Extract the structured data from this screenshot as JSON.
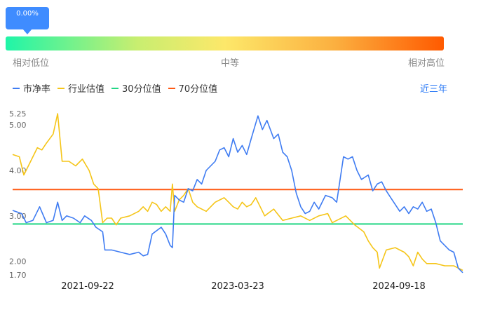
{
  "indicator": {
    "value_label": "0.00%",
    "scale_low": "相对低位",
    "scale_mid": "中等",
    "scale_high": "相对高位"
  },
  "period_selector": {
    "label": "近三年"
  },
  "colors": {
    "pe": "#3f7cf2",
    "industry": "#f5c518",
    "p30": "#22d685",
    "p70": "#ff5a14"
  },
  "chart_data": {
    "type": "line",
    "xlabel": "",
    "ylabel": "",
    "x_ticks": [
      "2021-09-22",
      "2023-03-23",
      "2024-09-18"
    ],
    "y_ticks": [
      1.7,
      2.0,
      3.0,
      4.0,
      5.0,
      5.25
    ],
    "y_tick_labels": [
      "1.70",
      "2.00",
      "3.00",
      "4.00",
      "5.00",
      "5.25"
    ],
    "ylim": [
      1.7,
      5.25
    ],
    "legend_position": "top-left",
    "series": [
      {
        "name": "市净率",
        "color": "#3f7cf2",
        "points": [
          [
            0,
            3.12
          ],
          [
            0.02,
            3.05
          ],
          [
            0.03,
            2.85
          ],
          [
            0.045,
            2.9
          ],
          [
            0.06,
            3.2
          ],
          [
            0.075,
            2.85
          ],
          [
            0.09,
            2.9
          ],
          [
            0.1,
            3.3
          ],
          [
            0.11,
            2.9
          ],
          [
            0.12,
            3.0
          ],
          [
            0.135,
            2.95
          ],
          [
            0.15,
            2.85
          ],
          [
            0.16,
            3.0
          ],
          [
            0.175,
            2.9
          ],
          [
            0.185,
            2.75
          ],
          [
            0.2,
            2.65
          ],
          [
            0.205,
            2.25
          ],
          [
            0.22,
            2.25
          ],
          [
            0.24,
            2.2
          ],
          [
            0.26,
            2.15
          ],
          [
            0.28,
            2.2
          ],
          [
            0.29,
            2.12
          ],
          [
            0.3,
            2.15
          ],
          [
            0.31,
            2.6
          ],
          [
            0.33,
            2.75
          ],
          [
            0.34,
            2.6
          ],
          [
            0.35,
            2.35
          ],
          [
            0.355,
            2.3
          ],
          [
            0.36,
            3.45
          ],
          [
            0.37,
            3.35
          ],
          [
            0.38,
            3.3
          ],
          [
            0.39,
            3.6
          ],
          [
            0.4,
            3.55
          ],
          [
            0.41,
            3.8
          ],
          [
            0.42,
            3.7
          ],
          [
            0.43,
            4.0
          ],
          [
            0.44,
            4.1
          ],
          [
            0.45,
            4.2
          ],
          [
            0.46,
            4.45
          ],
          [
            0.47,
            4.5
          ],
          [
            0.48,
            4.3
          ],
          [
            0.49,
            4.7
          ],
          [
            0.5,
            4.4
          ],
          [
            0.51,
            4.55
          ],
          [
            0.52,
            4.35
          ],
          [
            0.53,
            4.7
          ],
          [
            0.545,
            5.2
          ],
          [
            0.555,
            4.9
          ],
          [
            0.565,
            5.1
          ],
          [
            0.58,
            4.7
          ],
          [
            0.59,
            4.8
          ],
          [
            0.6,
            4.4
          ],
          [
            0.61,
            4.3
          ],
          [
            0.62,
            4.0
          ],
          [
            0.63,
            3.5
          ],
          [
            0.64,
            3.2
          ],
          [
            0.65,
            3.05
          ],
          [
            0.66,
            3.1
          ],
          [
            0.67,
            3.3
          ],
          [
            0.68,
            3.15
          ],
          [
            0.695,
            3.45
          ],
          [
            0.71,
            3.4
          ],
          [
            0.72,
            3.3
          ],
          [
            0.735,
            4.3
          ],
          [
            0.745,
            4.25
          ],
          [
            0.755,
            4.3
          ],
          [
            0.765,
            4.0
          ],
          [
            0.775,
            3.8
          ],
          [
            0.79,
            3.9
          ],
          [
            0.8,
            3.55
          ],
          [
            0.81,
            3.7
          ],
          [
            0.82,
            3.75
          ],
          [
            0.83,
            3.55
          ],
          [
            0.84,
            3.4
          ],
          [
            0.85,
            3.25
          ],
          [
            0.86,
            3.1
          ],
          [
            0.87,
            3.2
          ],
          [
            0.88,
            3.05
          ],
          [
            0.89,
            3.2
          ],
          [
            0.9,
            3.15
          ],
          [
            0.91,
            3.3
          ],
          [
            0.92,
            3.1
          ],
          [
            0.93,
            3.15
          ],
          [
            0.94,
            2.85
          ],
          [
            0.95,
            2.45
          ],
          [
            0.96,
            2.35
          ],
          [
            0.97,
            2.25
          ],
          [
            0.98,
            2.2
          ],
          [
            0.99,
            1.85
          ],
          [
            1.0,
            1.75
          ]
        ]
      },
      {
        "name": "行业估值",
        "color": "#f5c518",
        "points": [
          [
            0,
            4.35
          ],
          [
            0.015,
            4.3
          ],
          [
            0.025,
            3.9
          ],
          [
            0.04,
            4.2
          ],
          [
            0.055,
            4.5
          ],
          [
            0.065,
            4.45
          ],
          [
            0.075,
            4.6
          ],
          [
            0.09,
            4.8
          ],
          [
            0.1,
            5.25
          ],
          [
            0.11,
            4.2
          ],
          [
            0.125,
            4.2
          ],
          [
            0.14,
            4.1
          ],
          [
            0.155,
            4.25
          ],
          [
            0.17,
            4.0
          ],
          [
            0.18,
            3.7
          ],
          [
            0.19,
            3.6
          ],
          [
            0.2,
            2.85
          ],
          [
            0.21,
            2.95
          ],
          [
            0.22,
            2.95
          ],
          [
            0.23,
            2.8
          ],
          [
            0.24,
            2.95
          ],
          [
            0.26,
            3.0
          ],
          [
            0.28,
            3.1
          ],
          [
            0.29,
            3.2
          ],
          [
            0.3,
            3.1
          ],
          [
            0.31,
            3.3
          ],
          [
            0.32,
            3.25
          ],
          [
            0.33,
            3.1
          ],
          [
            0.34,
            3.2
          ],
          [
            0.35,
            3.1
          ],
          [
            0.355,
            3.7
          ],
          [
            0.36,
            3.1
          ],
          [
            0.37,
            3.35
          ],
          [
            0.38,
            3.45
          ],
          [
            0.39,
            3.6
          ],
          [
            0.4,
            3.3
          ],
          [
            0.41,
            3.2
          ],
          [
            0.43,
            3.1
          ],
          [
            0.45,
            3.3
          ],
          [
            0.47,
            3.4
          ],
          [
            0.48,
            3.3
          ],
          [
            0.49,
            3.2
          ],
          [
            0.5,
            3.15
          ],
          [
            0.51,
            3.3
          ],
          [
            0.52,
            3.2
          ],
          [
            0.53,
            3.25
          ],
          [
            0.54,
            3.4
          ],
          [
            0.55,
            3.2
          ],
          [
            0.56,
            3.0
          ],
          [
            0.58,
            3.15
          ],
          [
            0.6,
            2.9
          ],
          [
            0.62,
            2.95
          ],
          [
            0.64,
            3.0
          ],
          [
            0.66,
            2.9
          ],
          [
            0.68,
            3.0
          ],
          [
            0.7,
            3.05
          ],
          [
            0.71,
            2.85
          ],
          [
            0.72,
            2.9
          ],
          [
            0.74,
            3.0
          ],
          [
            0.76,
            2.8
          ],
          [
            0.78,
            2.65
          ],
          [
            0.79,
            2.45
          ],
          [
            0.8,
            2.3
          ],
          [
            0.81,
            2.2
          ],
          [
            0.815,
            1.85
          ],
          [
            0.83,
            2.25
          ],
          [
            0.85,
            2.3
          ],
          [
            0.87,
            2.2
          ],
          [
            0.88,
            2.1
          ],
          [
            0.89,
            1.9
          ],
          [
            0.9,
            2.2
          ],
          [
            0.91,
            2.05
          ],
          [
            0.92,
            1.95
          ],
          [
            0.94,
            1.95
          ],
          [
            0.96,
            1.9
          ],
          [
            0.98,
            1.9
          ],
          [
            1.0,
            1.8
          ]
        ]
      },
      {
        "name": "30分位值",
        "color": "#22d685",
        "points": [
          [
            0,
            2.82
          ],
          [
            1.0,
            2.82
          ]
        ]
      },
      {
        "name": "70分位值",
        "color": "#ff5a14",
        "points": [
          [
            0,
            3.58
          ],
          [
            1.0,
            3.58
          ]
        ]
      }
    ]
  }
}
